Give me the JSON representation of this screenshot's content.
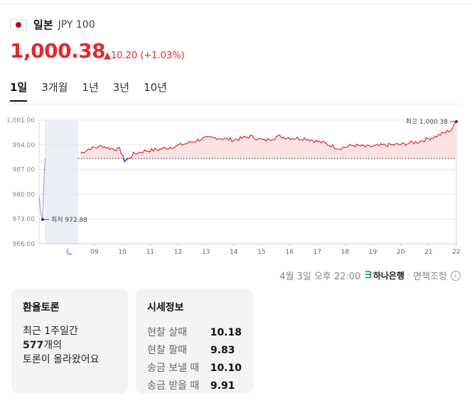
{
  "currency": {
    "name": "일본",
    "code": "JPY 100",
    "price": "1,000.38",
    "change": "▲10.20 (+1.03%)",
    "flag_icon": "japan-flag-icon"
  },
  "tabs": [
    {
      "label": "1일",
      "active": true
    },
    {
      "label": "3개월",
      "active": false
    },
    {
      "label": "1년",
      "active": false
    },
    {
      "label": "3년",
      "active": false
    },
    {
      "label": "10년",
      "active": false
    }
  ],
  "chart_data": {
    "type": "line",
    "ylim": [
      966.0,
      1001.0
    ],
    "yticks": [
      "1,001.00",
      "994.00",
      "987.00",
      "980.00",
      "973.00",
      "966.00"
    ],
    "xticks": [
      "09",
      "10",
      "11",
      "12",
      "13",
      "14",
      "15",
      "16",
      "17",
      "18",
      "19",
      "20",
      "21",
      "22"
    ],
    "night_icon": "moon-icon",
    "baseline": 990.18,
    "high_label": "최고 1,000.38",
    "high": 1000.38,
    "low_label": "최저 972.88",
    "low": 972.88,
    "colors": {
      "up": "#e0292f",
      "up_fill": "#fbe3e4",
      "down": "#2b7de1",
      "premarket": "#9aa3c5",
      "shade": "#eceef6",
      "grid": "#e8e8e8"
    }
  },
  "updated": {
    "text": "4월 3일 오후 22:00",
    "bank": "하나은행",
    "bank_icon": "hana-bank-logo-icon",
    "disclaimer": "면책조항",
    "info_icon": "info-icon"
  },
  "discussion": {
    "title": "환율토론",
    "line1": "최근 1주일간",
    "count": "577",
    "count_suffix": "개의",
    "line3": "토론이 올라왔어요"
  },
  "quotes": {
    "title": "시세정보",
    "rows": [
      {
        "label": "현찰 살때",
        "value": "10.18"
      },
      {
        "label": "현찰 팔때",
        "value": "9.83"
      },
      {
        "label": "송금 보낼 때",
        "value": "10.10"
      },
      {
        "label": "송금 받을 때",
        "value": "9.91"
      }
    ]
  }
}
